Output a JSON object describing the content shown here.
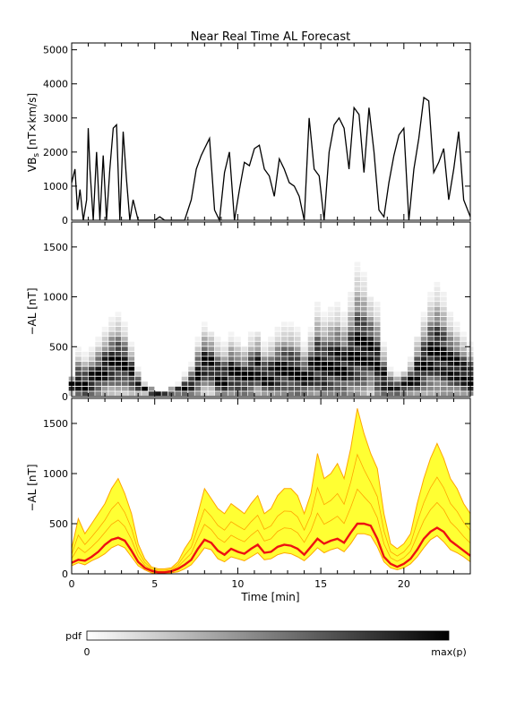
{
  "title": "Near Real Time AL Forecast",
  "colors": {
    "band_light": "#ffa500",
    "band_fill": "#ffff33",
    "median": "#ee1111",
    "axis": "#000000"
  },
  "chart_data": [
    {
      "type": "line",
      "panel": "top",
      "ylabel_main": "VB",
      "ylabel_sub": "s",
      "ylabel_unit": " [nT×km/s]",
      "xlim": [
        0,
        24
      ],
      "ylim": [
        0,
        5200
      ],
      "yticks": [
        0,
        1000,
        2000,
        3000,
        4000,
        5000
      ],
      "series": [
        {
          "x": [
            0,
            0.2,
            0.35,
            0.5,
            0.7,
            0.9,
            1.0,
            1.1,
            1.3,
            1.5,
            1.7,
            1.9,
            2.1,
            2.3,
            2.5,
            2.7,
            2.9,
            3.1,
            3.3,
            3.5,
            3.7,
            4.0,
            4.5,
            5.0,
            5.3,
            5.6,
            6.0,
            6.4,
            6.8,
            7.2,
            7.5,
            7.8,
            8.0,
            8.3,
            8.6,
            8.9,
            9.2,
            9.5,
            9.8,
            10.1,
            10.4,
            10.7,
            11.0,
            11.3,
            11.6,
            11.9,
            12.2,
            12.5,
            12.8,
            13.1,
            13.4,
            13.7,
            14.0,
            14.3,
            14.6,
            14.9,
            15.2,
            15.5,
            15.8,
            16.1,
            16.4,
            16.7,
            17.0,
            17.3,
            17.6,
            17.9,
            18.2,
            18.5,
            18.8,
            19.1,
            19.4,
            19.7,
            20.0,
            20.3,
            20.6,
            20.9,
            21.2,
            21.5,
            21.8,
            22.1,
            22.4,
            22.7,
            23.0,
            23.3,
            23.6,
            24.0
          ],
          "values": [
            1100,
            1500,
            300,
            900,
            0,
            600,
            2700,
            1500,
            0,
            2000,
            0,
            1900,
            0,
            1500,
            2700,
            2800,
            0,
            2600,
            1200,
            0,
            600,
            0,
            0,
            0,
            100,
            0,
            0,
            0,
            0,
            600,
            1500,
            1900,
            2100,
            2400,
            300,
            0,
            1400,
            2000,
            0,
            900,
            1700,
            1600,
            2100,
            2200,
            1500,
            1300,
            700,
            1800,
            1500,
            1100,
            1000,
            700,
            0,
            3000,
            1500,
            1300,
            0,
            2000,
            2800,
            3000,
            2700,
            1500,
            3300,
            3100,
            1400,
            3300,
            2000,
            300,
            100,
            1100,
            1900,
            2500,
            2700,
            0,
            1500,
            2400,
            3600,
            3500,
            1400,
            1700,
            2100,
            600,
            1500,
            2600,
            600,
            100
          ]
        }
      ]
    },
    {
      "type": "heatmap",
      "panel": "middle",
      "ylabel": "−AL [nT]",
      "xlim": [
        0,
        24
      ],
      "ylim": [
        0,
        1750
      ],
      "yticks": [
        0,
        500,
        1000,
        1500
      ],
      "x": [
        0,
        0.4,
        0.8,
        1.2,
        1.6,
        2.0,
        2.4,
        2.8,
        3.2,
        3.6,
        4.0,
        4.4,
        4.8,
        5.2,
        5.6,
        6.0,
        6.4,
        6.8,
        7.2,
        7.6,
        8.0,
        8.4,
        8.8,
        9.2,
        9.6,
        10.0,
        10.4,
        10.8,
        11.2,
        11.6,
        12.0,
        12.4,
        12.8,
        13.2,
        13.6,
        14.0,
        14.4,
        14.8,
        15.2,
        15.6,
        16.0,
        16.4,
        16.8,
        17.2,
        17.6,
        18.0,
        18.4,
        18.8,
        19.2,
        19.6,
        20.0,
        20.4,
        20.8,
        21.2,
        21.6,
        22.0,
        22.4,
        22.8,
        23.2,
        23.6,
        24.0
      ],
      "median": [
        80,
        120,
        100,
        140,
        190,
        250,
        300,
        320,
        290,
        200,
        100,
        50,
        20,
        10,
        10,
        15,
        30,
        60,
        100,
        200,
        300,
        280,
        180,
        150,
        210,
        180,
        160,
        200,
        250,
        170,
        180,
        220,
        240,
        230,
        200,
        150,
        220,
        300,
        250,
        280,
        300,
        260,
        350,
        450,
        440,
        420,
        300,
        150,
        80,
        60,
        80,
        120,
        200,
        300,
        380,
        420,
        360,
        280,
        250,
        200,
        150
      ],
      "spread": [
        200,
        450,
        400,
        450,
        550,
        650,
        750,
        800,
        700,
        500,
        250,
        120,
        60,
        40,
        40,
        50,
        100,
        200,
        300,
        550,
        700,
        650,
        550,
        500,
        600,
        550,
        500,
        600,
        650,
        500,
        550,
        650,
        700,
        700,
        650,
        500,
        650,
        900,
        800,
        850,
        900,
        800,
        1000,
        1300,
        1200,
        1000,
        900,
        500,
        250,
        200,
        250,
        350,
        600,
        800,
        1000,
        1100,
        1000,
        800,
        700,
        600,
        500
      ],
      "colorbar_label": "pdf",
      "colorbar_min": "0",
      "colorbar_max": "max(p)"
    },
    {
      "type": "area",
      "panel": "bottom",
      "xlabel": "Time [min]",
      "ylabel": "−AL [nT]",
      "xlim": [
        0,
        24
      ],
      "ylim": [
        0,
        1750
      ],
      "xticks": [
        0,
        5,
        10,
        15,
        20
      ],
      "yticks": [
        0,
        500,
        1000,
        1500
      ],
      "x": [
        0,
        0.4,
        0.8,
        1.2,
        1.6,
        2.0,
        2.4,
        2.8,
        3.2,
        3.6,
        4.0,
        4.4,
        4.8,
        5.2,
        5.6,
        6.0,
        6.4,
        6.8,
        7.2,
        7.6,
        8.0,
        8.4,
        8.8,
        9.2,
        9.6,
        10.0,
        10.4,
        10.8,
        11.2,
        11.6,
        12.0,
        12.4,
        12.8,
        13.2,
        13.6,
        14.0,
        14.4,
        14.8,
        15.2,
        15.6,
        16.0,
        16.4,
        16.8,
        17.2,
        17.6,
        18.0,
        18.4,
        18.8,
        19.2,
        19.6,
        20.0,
        20.4,
        20.8,
        21.2,
        21.6,
        22.0,
        22.4,
        22.8,
        23.2,
        23.6,
        24.0
      ],
      "lower": [
        80,
        110,
        90,
        130,
        160,
        200,
        260,
        290,
        260,
        170,
        80,
        40,
        10,
        5,
        5,
        10,
        20,
        50,
        90,
        170,
        260,
        240,
        150,
        120,
        170,
        150,
        130,
        170,
        210,
        140,
        150,
        190,
        210,
        200,
        170,
        130,
        190,
        260,
        210,
        240,
        260,
        220,
        300,
        400,
        400,
        380,
        270,
        120,
        60,
        40,
        60,
        100,
        170,
        260,
        340,
        380,
        320,
        240,
        210,
        170,
        120
      ],
      "median": [
        110,
        140,
        130,
        170,
        220,
        290,
        340,
        360,
        330,
        230,
        120,
        60,
        30,
        15,
        15,
        25,
        50,
        90,
        140,
        250,
        340,
        310,
        230,
        190,
        250,
        220,
        200,
        250,
        290,
        210,
        220,
        270,
        290,
        280,
        250,
        190,
        270,
        350,
        300,
        330,
        350,
        310,
        410,
        500,
        500,
        480,
        350,
        170,
        100,
        70,
        100,
        150,
        240,
        350,
        420,
        460,
        420,
        330,
        280,
        230,
        180
      ],
      "upper": [
        250,
        550,
        400,
        500,
        600,
        700,
        850,
        950,
        800,
        600,
        300,
        150,
        70,
        50,
        50,
        60,
        120,
        250,
        350,
        600,
        850,
        750,
        650,
        600,
        700,
        650,
        600,
        700,
        780,
        600,
        650,
        780,
        850,
        850,
        780,
        600,
        800,
        1200,
        950,
        1000,
        1100,
        950,
        1250,
        1650,
        1400,
        1200,
        1050,
        600,
        300,
        250,
        300,
        400,
        700,
        950,
        1150,
        1300,
        1150,
        950,
        850,
        700,
        600
      ]
    }
  ]
}
